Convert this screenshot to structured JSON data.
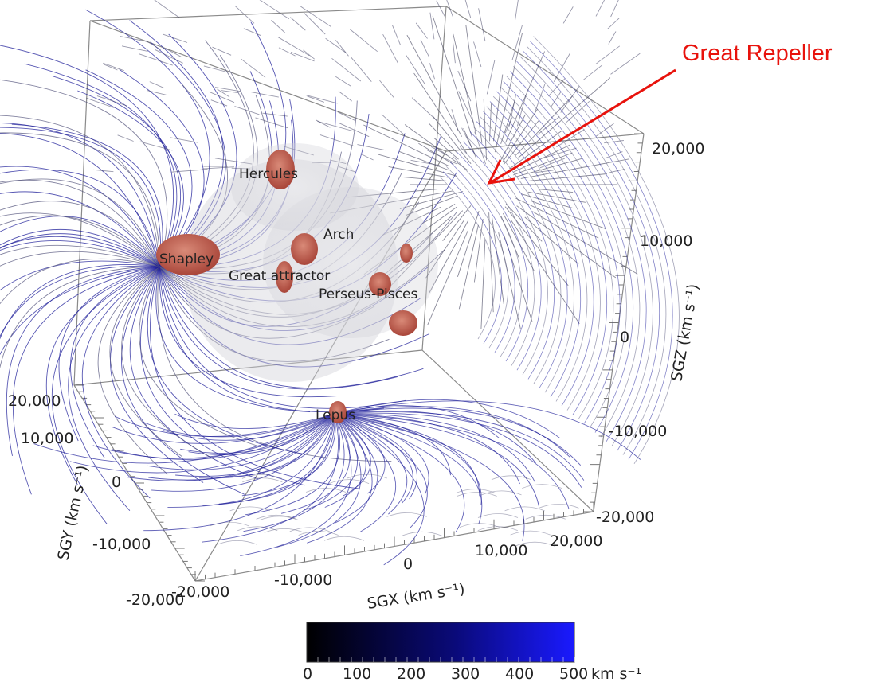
{
  "annotation": {
    "label": "Great Repeller",
    "color": "#e8120c"
  },
  "structures": [
    "Hercules",
    "Shapley",
    "Arch",
    "Great attractor",
    "Perseus-Pisces",
    "Lepus"
  ],
  "axes": {
    "sgz": {
      "title": "SGZ (km s⁻¹)",
      "ticks": [
        "20,000",
        "10,000",
        "0",
        "-10,000",
        "-20,000"
      ]
    },
    "sgy": {
      "title": "SGY (km s⁻¹)",
      "ticks": [
        "20,000",
        "10,000",
        "0",
        "-10,000",
        "-20,000"
      ]
    },
    "sgx": {
      "title": "SGX (km s⁻¹)",
      "ticks": [
        "-20,000",
        "-10,000",
        "0",
        "10,000",
        "20,000"
      ]
    }
  },
  "colorbar": {
    "ticks": [
      "0",
      "100",
      "200",
      "300",
      "400",
      "500"
    ],
    "unit": "km s⁻¹",
    "range": [
      0,
      500
    ],
    "color_low": "#000000",
    "color_high": "#1a1aff"
  },
  "colors": {
    "flow_line": "#1f1f9a",
    "flow_line_light": "#5a5a80",
    "cluster": "#c0614e",
    "box_edge": "#8a8a8a"
  }
}
